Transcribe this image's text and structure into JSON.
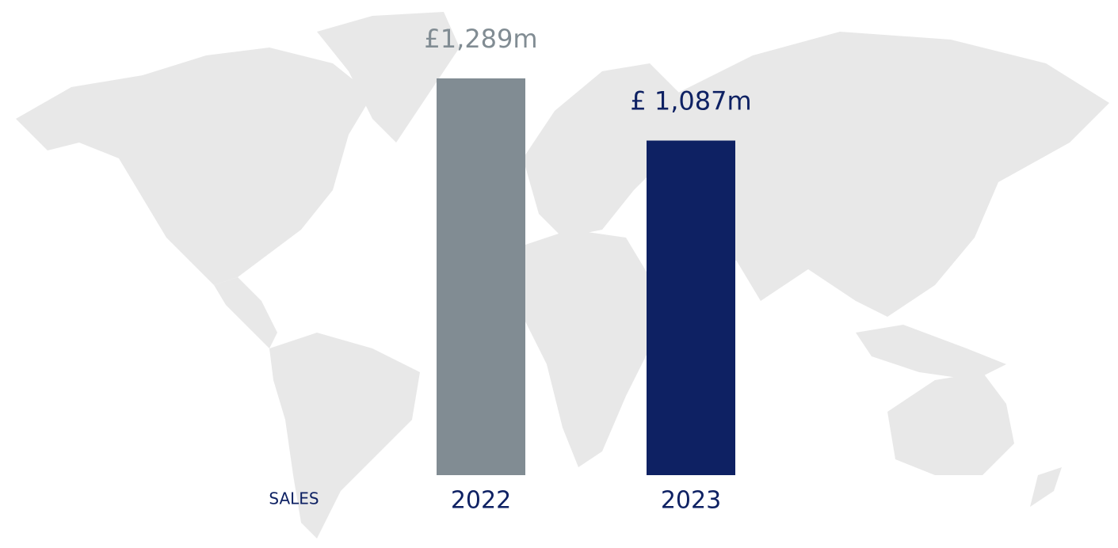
{
  "chart_data": {
    "type": "bar",
    "label": "SALES",
    "categories": [
      "2022",
      "2023"
    ],
    "values": [
      1289,
      1087
    ],
    "value_labels": [
      "£1,289m",
      "£ 1,087m"
    ],
    "colors": [
      "#818c93",
      "#0e2163"
    ]
  }
}
